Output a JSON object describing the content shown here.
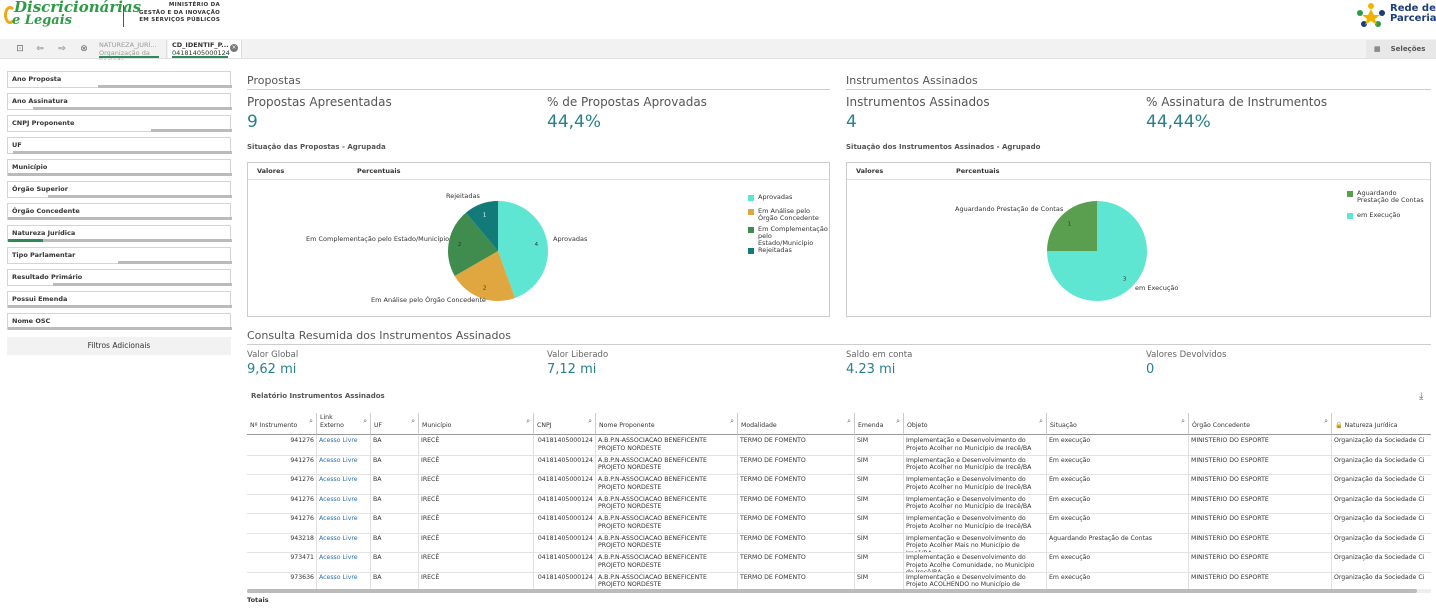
{
  "header": {
    "logo_line1": "Discricionárias",
    "logo_line2": "e Legais",
    "ministry_line1": "MINISTÉRIO DA",
    "ministry_line2": "GESTÃO E DA INOVAÇÃO",
    "ministry_line3": "EM SERVIÇOS PÚBLICOS",
    "rede_line1": "Rede de",
    "rede_line2": "Parcerias"
  },
  "toolbar": {
    "chips": [
      {
        "title": "NATUREZA_JURÍ...",
        "value": "Organização da Socieda..."
      },
      {
        "title": "CD_IDENTIF_P...",
        "value": "04181405000124"
      }
    ],
    "selecoes_label": "Seleções"
  },
  "sidebar": {
    "filters": [
      "Ano Proposta",
      "Ano Assinatura",
      "CNPJ Proponente",
      "UF",
      "Município",
      "Órgão Superior",
      "Órgão Concedente",
      "Natureza Jurídica",
      "Tipo Parlamentar",
      "Resultado Primário",
      "Possui Emenda",
      "Nome OSC"
    ],
    "filtros_adicionais": "Filtros Adicionais"
  },
  "propostas": {
    "section_title": "Propostas",
    "kpi1_label": "Propostas Apresentadas",
    "kpi1_value": "9",
    "kpi2_label": "% de Propostas Aprovadas",
    "kpi2_value": "44,4%",
    "chart_title": "Situação das Propostas - Agrupada",
    "col_valores": "Valores",
    "col_percentuais": "Percentuais"
  },
  "instrumentos": {
    "section_title": "Instrumentos Assinados",
    "kpi1_label": "Instrumentos Assinados",
    "kpi1_value": "4",
    "kpi2_label": "% Assinatura de Instrumentos",
    "kpi2_value": "44,44%",
    "chart_title": "Situação dos Instrumentos Assinados - Agrupado",
    "col_valores": "Valores",
    "col_percentuais": "Percentuais"
  },
  "chart_data": [
    {
      "type": "pie",
      "title": "Situação das Propostas - Agrupada",
      "categories": [
        "Aprovadas",
        "Em Análise pelo Órgão Concedente",
        "Em Complementação pelo Estado/Município",
        "Rejeitadas"
      ],
      "values": [
        4,
        2,
        2,
        1
      ],
      "colors": [
        "#5ee6d2",
        "#e0a640",
        "#3f8c4e",
        "#137a7a"
      ],
      "legend": [
        "Aprovadas",
        "Em Análise pelo Órgão Concedente",
        "Em Complementação pelo Estado/Município",
        "Rejeitadas"
      ]
    },
    {
      "type": "pie",
      "title": "Situação dos Instrumentos Assinados - Agrupado",
      "categories": [
        "Aguardando Prestação de Contas",
        "em Execução"
      ],
      "values": [
        1,
        3
      ],
      "colors": [
        "#5a9e4f",
        "#5ee6d2"
      ],
      "legend": [
        "Aguardando Prestação de Contas",
        "em Execução"
      ]
    }
  ],
  "consulta": {
    "section_title": "Consulta Resumida dos Instrumentos Assinados",
    "valor_global_label": "Valor Global",
    "valor_global": "9,62 mi",
    "valor_liberado_label": "Valor Liberado",
    "valor_liberado": "7,12 mi",
    "saldo_label": "Saldo em conta",
    "saldo": "4.23 mi",
    "devolvidos_label": "Valores Devolvidos",
    "devolvidos": "0"
  },
  "relatorio": {
    "title": "Relatório Instrumentos Assinados",
    "columns": [
      "Nº Instrumento",
      "Link Externo",
      "UF",
      "Município",
      "CNPJ",
      "Nome Proponente",
      "Modalidade",
      "Emenda",
      "Objeto",
      "Situação",
      "Órgão Concedente",
      "Natureza Jurídica"
    ],
    "rows": [
      [
        "941276",
        "Acesso Livre",
        "BA",
        "IRECÊ",
        "04181405000124",
        "A.B.P.N-ASSOCIACAO BENEFICENTE PROJETO NORDESTE",
        "TERMO DE FOMENTO",
        "SIM",
        "Implementação e Desenvolvimento do Projeto Acolher no Município de Irecê/BA",
        "Em execução",
        "MINISTERIO DO ESPORTE",
        "Organização da Sociedade Ci"
      ],
      [
        "941276",
        "Acesso Livre",
        "BA",
        "IRECÊ",
        "04181405000124",
        "A.B.P.N-ASSOCIACAO BENEFICENTE PROJETO NORDESTE",
        "TERMO DE FOMENTO",
        "SIM",
        "Implementação e Desenvolvimento do Projeto Acolher no Município de Irecê/BA",
        "Em execução",
        "MINISTERIO DO ESPORTE",
        "Organização da Sociedade Ci"
      ],
      [
        "941276",
        "Acesso Livre",
        "BA",
        "IRECÊ",
        "04181405000124",
        "A.B.P.N-ASSOCIACAO BENEFICENTE PROJETO NORDESTE",
        "TERMO DE FOMENTO",
        "SIM",
        "Implementação e Desenvolvimento do Projeto Acolher no Município de Irecê/BA",
        "Em execução",
        "MINISTERIO DO ESPORTE",
        "Organização da Sociedade Ci"
      ],
      [
        "941276",
        "Acesso Livre",
        "BA",
        "IRECÊ",
        "04181405000124",
        "A.B.P.N-ASSOCIACAO BENEFICENTE PROJETO NORDESTE",
        "TERMO DE FOMENTO",
        "SIM",
        "Implementação e Desenvolvimento do Projeto Acolher no Município de Irecê/BA",
        "Em execução",
        "MINISTERIO DO ESPORTE",
        "Organização da Sociedade Ci"
      ],
      [
        "941276",
        "Acesso Livre",
        "BA",
        "IRECÊ",
        "04181405000124",
        "A.B.P.N-ASSOCIACAO BENEFICENTE PROJETO NORDESTE",
        "TERMO DE FOMENTO",
        "SIM",
        "Implementação e Desenvolvimento do Projeto Acolher no Município de Irecê/BA",
        "Em execução",
        "MINISTERIO DO ESPORTE",
        "Organização da Sociedade Ci"
      ],
      [
        "943218",
        "Acesso Livre",
        "BA",
        "IRECÊ",
        "04181405000124",
        "A.B.P.N-ASSOCIACAO BENEFICENTE PROJETO NORDESTE",
        "TERMO DE FOMENTO",
        "SIM",
        "Implementação e Desenvolvimento do Projeto Acolher Mais no Município de Irecê/BA",
        "Aguardando Prestação de Contas",
        "MINISTERIO DO ESPORTE",
        "Organização da Sociedade Ci"
      ],
      [
        "973471",
        "Acesso Livre",
        "BA",
        "IRECÊ",
        "04181405000124",
        "A.B.P.N-ASSOCIACAO BENEFICENTE PROJETO NORDESTE",
        "TERMO DE FOMENTO",
        "SIM",
        "Implementação e Desenvolvimento do Projeto Acolhe Comunidade, no Município de Irecê/BA",
        "Em execução",
        "MINISTERIO DO ESPORTE",
        "Organização da Sociedade Ci"
      ],
      [
        "973636",
        "Acesso Livre",
        "BA",
        "IRECÊ",
        "04181405000124",
        "A.B.P.N-ASSOCIACAO BENEFICENTE PROJETO NORDESTE",
        "TERMO DE FOMENTO",
        "SIM",
        "Implementação e Desenvolvimento do Projeto ACOLHENDO no Município de Irecê/BA.",
        "Em execução",
        "MINISTERIO DO ESPORTE",
        "Organização da Sociedade Ci"
      ]
    ],
    "totals_label": "Totais"
  }
}
